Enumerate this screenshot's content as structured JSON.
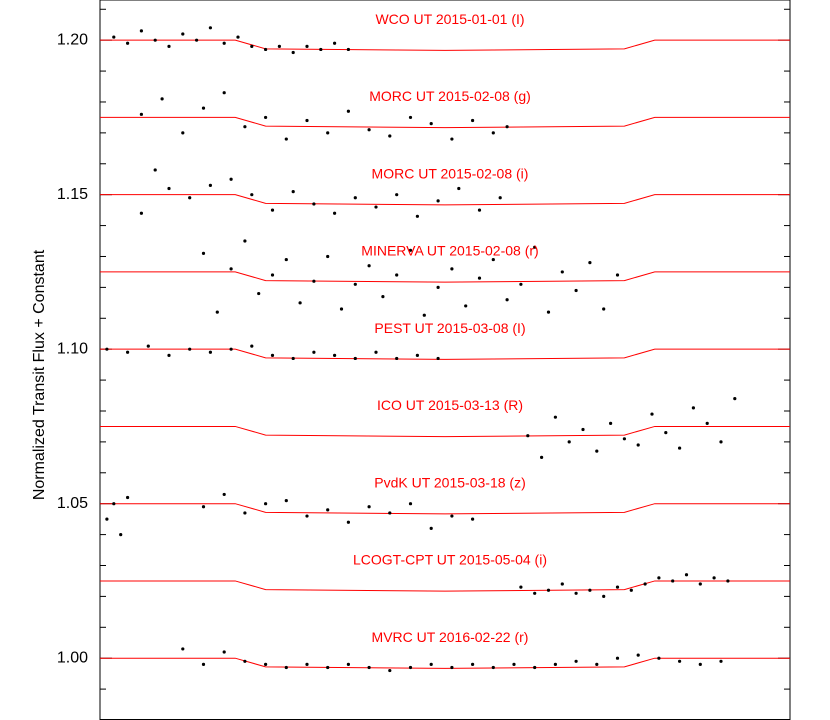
{
  "chart_data": {
    "type": "scatter",
    "ylabel": "Normalized Transit Flux + Constant",
    "xlim": [
      0,
      100
    ],
    "ylim": [
      0.98,
      1.213
    ],
    "yticks": [
      {
        "value": 1,
        "label": "1.00"
      },
      1.05,
      {
        "value": 1.1,
        "label": "1.10"
      },
      1.15,
      {
        "value": 1.2,
        "label": "1.20"
      }
    ],
    "minor_yticks": [
      0.99,
      1.01,
      1.02,
      1.03,
      1.04,
      1.06,
      1.07,
      1.08,
      1.09,
      1.11,
      1.12,
      1.13,
      1.14,
      1.16,
      1.17,
      1.18,
      1.19,
      1.21
    ],
    "series": [
      {
        "name": "WCO UT 2015-01-01 (I)",
        "color": "#000000",
        "x": [
          2,
          4,
          6,
          8,
          10,
          12,
          14,
          16,
          18,
          20,
          22,
          24,
          26,
          28,
          30,
          32,
          34,
          36
        ],
        "values": [
          1.201,
          1.199,
          1.203,
          1.2,
          1.198,
          1.202,
          1.2,
          1.204,
          1.199,
          1.201,
          1.198,
          1.197,
          1.198,
          1.196,
          1.198,
          1.197,
          1.199,
          1.197
        ],
        "model": {
          "color": "#ff0000",
          "x": [
            0,
            19.6,
            24,
            50,
            76,
            80.4,
            100
          ],
          "values": [
            1.2,
            1.2,
            1.1972,
            1.1967,
            1.1972,
            1.2,
            1.2
          ]
        }
      },
      {
        "name": "MORC UT 2015-02-08 (g)",
        "color": "#000000",
        "x": [
          6,
          9,
          12,
          15,
          18,
          21,
          24,
          27,
          30,
          33,
          36,
          39,
          42,
          45,
          48,
          51,
          54,
          57,
          59
        ],
        "values": [
          1.176,
          1.181,
          1.17,
          1.178,
          1.183,
          1.172,
          1.175,
          1.168,
          1.174,
          1.17,
          1.177,
          1.171,
          1.169,
          1.175,
          1.173,
          1.168,
          1.174,
          1.17,
          1.172
        ],
        "model": {
          "color": "#ff0000",
          "x": [
            0,
            19.6,
            24,
            50,
            76,
            80.4,
            100
          ],
          "values": [
            1.175,
            1.175,
            1.1722,
            1.1717,
            1.1722,
            1.175,
            1.175
          ]
        }
      },
      {
        "name": "MORC UT 2015-02-08 (i)",
        "color": "#000000",
        "x": [
          6,
          8,
          10,
          13,
          16,
          19,
          22,
          25,
          28,
          31,
          34,
          37,
          40,
          43,
          46,
          49,
          52,
          55,
          58
        ],
        "values": [
          1.144,
          1.158,
          1.152,
          1.149,
          1.153,
          1.155,
          1.15,
          1.145,
          1.151,
          1.147,
          1.144,
          1.149,
          1.146,
          1.15,
          1.143,
          1.148,
          1.152,
          1.145,
          1.149
        ],
        "model": {
          "color": "#ff0000",
          "x": [
            0,
            19.6,
            24,
            50,
            76,
            80.4,
            100
          ],
          "values": [
            1.15,
            1.15,
            1.1472,
            1.1467,
            1.1472,
            1.15,
            1.15
          ]
        }
      },
      {
        "name": "MINERVA UT 2015-02-08 (r)",
        "color": "#000000",
        "x": [
          15,
          17,
          19,
          21,
          23,
          25,
          27,
          29,
          31,
          33,
          35,
          37,
          39,
          41,
          43,
          45,
          47,
          49,
          51,
          53,
          55,
          57,
          59,
          61,
          63,
          65,
          67,
          69,
          71,
          73,
          75
        ],
        "values": [
          1.131,
          1.112,
          1.126,
          1.135,
          1.118,
          1.124,
          1.129,
          1.115,
          1.122,
          1.13,
          1.113,
          1.121,
          1.127,
          1.117,
          1.124,
          1.132,
          1.111,
          1.12,
          1.126,
          1.114,
          1.123,
          1.129,
          1.116,
          1.121,
          1.133,
          1.112,
          1.125,
          1.119,
          1.128,
          1.113,
          1.124
        ],
        "model": {
          "color": "#ff0000",
          "x": [
            0,
            19.6,
            24,
            50,
            76,
            80.4,
            100
          ],
          "values": [
            1.125,
            1.125,
            1.1222,
            1.1217,
            1.1222,
            1.125,
            1.125
          ]
        }
      },
      {
        "name": "PEST UT 2015-03-08 (I)",
        "color": "#000000",
        "x": [
          1,
          4,
          7,
          10,
          13,
          16,
          19,
          22,
          25,
          28,
          31,
          34,
          37,
          40,
          43,
          46,
          49
        ],
        "values": [
          1.1,
          1.099,
          1.101,
          1.098,
          1.1,
          1.099,
          1.1,
          1.101,
          1.098,
          1.097,
          1.099,
          1.098,
          1.097,
          1.099,
          1.097,
          1.098,
          1.097
        ],
        "model": {
          "color": "#ff0000",
          "x": [
            0,
            19.6,
            24,
            50,
            76,
            80.4,
            100
          ],
          "values": [
            1.1,
            1.1,
            1.0972,
            1.0967,
            1.0972,
            1.1,
            1.1
          ]
        }
      },
      {
        "name": "ICO UT 2015-03-13 (R)",
        "color": "#000000",
        "x": [
          62,
          64,
          66,
          68,
          70,
          72,
          74,
          76,
          78,
          80,
          82,
          84,
          86,
          88,
          90,
          92
        ],
        "values": [
          1.072,
          1.065,
          1.078,
          1.07,
          1.074,
          1.067,
          1.076,
          1.071,
          1.069,
          1.079,
          1.073,
          1.068,
          1.081,
          1.076,
          1.07,
          1.084
        ],
        "model": {
          "color": "#ff0000",
          "x": [
            0,
            19.6,
            24,
            50,
            76,
            80.4,
            100
          ],
          "values": [
            1.075,
            1.075,
            1.0722,
            1.0717,
            1.0722,
            1.075,
            1.075
          ]
        }
      },
      {
        "name": "PvdK UT 2015-03-18 (z)",
        "color": "#000000",
        "x": [
          1,
          2,
          3,
          4,
          15,
          18,
          21,
          24,
          27,
          30,
          33,
          36,
          39,
          42,
          45,
          48,
          51,
          54
        ],
        "values": [
          1.045,
          1.05,
          1.04,
          1.052,
          1.049,
          1.053,
          1.047,
          1.05,
          1.051,
          1.046,
          1.048,
          1.044,
          1.049,
          1.047,
          1.05,
          1.042,
          1.046,
          1.045
        ],
        "model": {
          "color": "#ff0000",
          "x": [
            0,
            19.6,
            24,
            50,
            76,
            80.4,
            100
          ],
          "values": [
            1.05,
            1.05,
            1.0472,
            1.0467,
            1.0472,
            1.05,
            1.05
          ]
        }
      },
      {
        "name": "LCOGT-CPT UT 2015-05-04 (i)",
        "color": "#000000",
        "x": [
          61,
          63,
          65,
          67,
          69,
          71,
          73,
          75,
          77,
          79,
          81,
          83,
          85,
          87,
          89,
          91
        ],
        "values": [
          1.023,
          1.021,
          1.022,
          1.024,
          1.021,
          1.022,
          1.02,
          1.023,
          1.022,
          1.024,
          1.026,
          1.025,
          1.027,
          1.024,
          1.026,
          1.025
        ],
        "model": {
          "color": "#ff0000",
          "x": [
            0,
            19.6,
            24,
            50,
            76,
            80.4,
            100
          ],
          "values": [
            1.025,
            1.025,
            1.0222,
            1.0217,
            1.0222,
            1.025,
            1.025
          ]
        }
      },
      {
        "name": "MVRC UT 2016-02-22 (r)",
        "color": "#000000",
        "x": [
          12,
          15,
          18,
          21,
          24,
          27,
          30,
          33,
          36,
          39,
          42,
          45,
          48,
          51,
          54,
          57,
          60,
          63,
          66,
          69,
          72,
          75,
          78,
          81,
          84,
          87,
          90
        ],
        "values": [
          1.003,
          0.998,
          1.002,
          0.999,
          0.998,
          0.997,
          0.998,
          0.997,
          0.998,
          0.997,
          0.996,
          0.997,
          0.998,
          0.997,
          0.998,
          0.997,
          0.998,
          0.997,
          0.998,
          0.999,
          0.998,
          1.0,
          1.001,
          1.0,
          0.999,
          0.998,
          0.999
        ],
        "model": {
          "color": "#ff0000",
          "x": [
            0,
            19.6,
            24,
            50,
            76,
            80.4,
            100
          ],
          "values": [
            1.0,
            1.0,
            0.9972,
            0.9967,
            0.9972,
            1.0,
            1.0
          ]
        }
      }
    ]
  }
}
